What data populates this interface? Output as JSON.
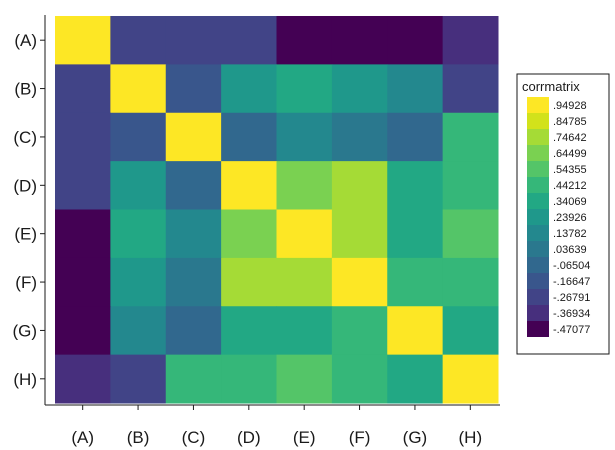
{
  "chart_data": {
    "type": "heatmap",
    "title": "",
    "xlabel": "",
    "ylabel": "",
    "categories": [
      "(A)",
      "(B)",
      "(C)",
      "(D)",
      "(E)",
      "(F)",
      "(G)",
      "(H)"
    ],
    "matrix": [
      [
        1.0,
        -0.3,
        -0.3,
        -0.3,
        -0.47,
        -0.47,
        -0.47,
        -0.37
      ],
      [
        -0.3,
        1.0,
        -0.15,
        0.23,
        0.34,
        0.28,
        0.14,
        -0.27
      ],
      [
        -0.3,
        -0.15,
        1.0,
        -0.1,
        0.12,
        0.03,
        -0.08,
        0.44
      ],
      [
        -0.3,
        0.23,
        -0.1,
        1.0,
        0.6,
        0.72,
        0.35,
        0.42
      ],
      [
        -0.47,
        0.32,
        0.12,
        0.6,
        1.0,
        0.72,
        0.32,
        0.55
      ],
      [
        -0.47,
        0.24,
        0.08,
        0.72,
        0.72,
        1.0,
        0.44,
        0.44
      ],
      [
        -0.47,
        0.18,
        -0.05,
        0.32,
        0.32,
        0.44,
        1.0,
        0.3
      ],
      [
        -0.37,
        -0.27,
        0.44,
        0.44,
        0.55,
        0.44,
        0.3,
        1.0
      ]
    ],
    "zlim": [
      -0.47077,
      1.0
    ],
    "grid": false,
    "legend": {
      "title": "corrmatrix",
      "position": "right",
      "levels": [
        {
          "label": ".94928",
          "color": "#fde725"
        },
        {
          "label": ".84785",
          "color": "#d2e21b"
        },
        {
          "label": ".74642",
          "color": "#a5db36"
        },
        {
          "label": ".64499",
          "color": "#7ad151"
        },
        {
          "label": ".54355",
          "color": "#54c568"
        },
        {
          "label": ".44212",
          "color": "#35b779"
        },
        {
          "label": ".34069",
          "color": "#22a884"
        },
        {
          "label": ".23926",
          "color": "#1f988b"
        },
        {
          "label": ".13782",
          "color": "#23888e"
        },
        {
          "label": ".03639",
          "color": "#2a788e"
        },
        {
          "label": "-.06504",
          "color": "#31688e"
        },
        {
          "label": "-.16647",
          "color": "#39568c"
        },
        {
          "label": "-.26791",
          "color": "#414487"
        },
        {
          "label": "-.36934",
          "color": "#472f7d"
        },
        {
          "label": "-.47077",
          "color": "#440154"
        }
      ]
    }
  }
}
